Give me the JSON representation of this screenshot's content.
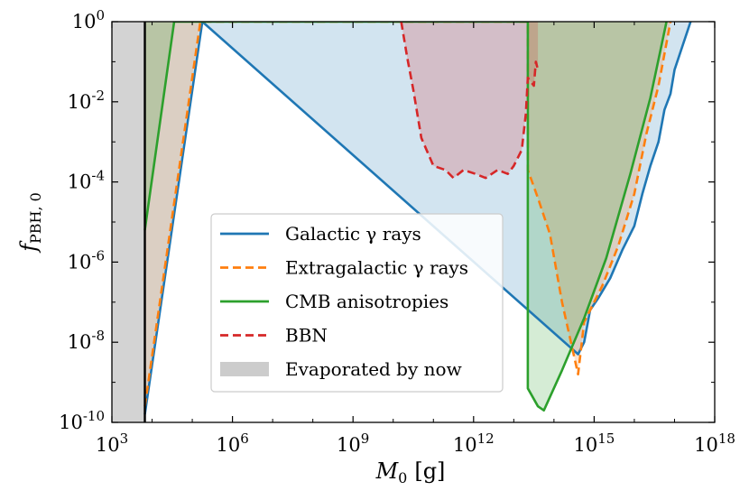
{
  "chart_data": {
    "type": "line",
    "xlabel": "M0 [g]",
    "xlabel_base": "M",
    "xlabel_sub": "0",
    "xlabel_unit": "[g]",
    "ylabel": "fPBH,0",
    "ylabel_base": "f",
    "ylabel_sub": "PBH, 0",
    "xscale": "log",
    "yscale": "log",
    "xlim_exp": [
      3,
      18
    ],
    "ylim_exp": [
      -10,
      0
    ],
    "xticks_exp": [
      3,
      6,
      9,
      12,
      15,
      18
    ],
    "yticks_exp": [
      0,
      -2,
      -4,
      -6,
      -8,
      -10
    ],
    "xtick_labels": [
      "10^3",
      "10^6",
      "10^9",
      "10^12",
      "10^15",
      "10^18"
    ],
    "ytick_labels": [
      "10^0",
      "10^-2",
      "10^-4",
      "10^-6",
      "10^-8",
      "10^-10"
    ],
    "legend_position": "center-left",
    "legend": [
      {
        "label": "Galactic γ rays",
        "color": "#1f77b4",
        "style": "solid",
        "kind": "line"
      },
      {
        "label": "Extragalactic γ rays",
        "color": "#ff7f0e",
        "style": "dashed",
        "kind": "line"
      },
      {
        "label": "CMB anisotropies",
        "color": "#2ca02c",
        "style": "solid",
        "kind": "line"
      },
      {
        "label": "BBN",
        "color": "#d62728",
        "style": "dashed",
        "kind": "line"
      },
      {
        "label": "Evaporated by now",
        "color": "#cccccc",
        "style": "patch",
        "kind": "patch"
      }
    ],
    "evaporated_region": {
      "log_m_max": 3.82,
      "color": "#d3d3d3"
    },
    "evaporation_line": {
      "log_m": 3.82,
      "color": "#000000"
    },
    "series": [
      {
        "name": "Galactic γ rays",
        "color": "#1f77b4",
        "style": "solid",
        "fill_color": "#1f77b4",
        "fill_opacity": 0.2,
        "log_x": [
          3.82,
          5.25,
          5.25,
          14.6,
          14.75,
          14.9,
          15.1,
          15.4,
          15.7,
          16.0,
          16.2,
          16.4,
          16.6,
          16.75,
          16.9,
          17.0,
          17.2,
          17.4
        ],
        "log_y": [
          -9.8,
          0.0,
          0.0,
          -8.3,
          -8.0,
          -7.2,
          -6.9,
          -6.4,
          -5.7,
          -5.1,
          -4.3,
          -3.6,
          -3.0,
          -2.2,
          -1.8,
          -1.2,
          -0.6,
          0.0
        ]
      },
      {
        "name": "Extragalactic γ rays",
        "color": "#ff7f0e",
        "style": "dashed",
        "fill_color": "#ff7f0e",
        "fill_opacity": 0.2,
        "log_x": [
          3.82,
          5.2,
          5.2,
          13.35,
          13.35,
          13.6,
          13.9,
          14.2,
          14.6,
          14.75,
          15.2,
          15.6,
          16.0,
          16.3,
          16.6,
          16.9
        ],
        "log_y": [
          -9.6,
          0.0,
          0.0,
          0.0,
          -3.7,
          -4.4,
          -5.3,
          -7.0,
          -8.8,
          -7.5,
          -6.6,
          -5.6,
          -4.3,
          -2.8,
          -1.6,
          0.0
        ]
      },
      {
        "name": "CMB anisotropies",
        "color": "#2ca02c",
        "style": "solid",
        "fill_color": "#2ca02c",
        "fill_opacity": 0.2,
        "log_x": [
          3.82,
          4.55,
          4.55,
          13.35,
          13.35,
          13.6,
          13.75,
          14.2,
          14.75,
          15.3,
          15.9,
          16.4,
          16.8
        ],
        "log_y": [
          -5.2,
          0.0,
          0.0,
          0.0,
          -9.15,
          -9.6,
          -9.7,
          -8.7,
          -7.4,
          -5.9,
          -3.8,
          -1.9,
          0.0
        ]
      },
      {
        "name": "BBN",
        "color": "#d62728",
        "style": "dashed",
        "fill_color": "#d62728",
        "fill_opacity": 0.2,
        "log_x": [
          10.2,
          10.35,
          10.5,
          10.7,
          11.0,
          11.3,
          11.5,
          11.75,
          12.05,
          12.3,
          12.6,
          12.85,
          13.0,
          13.2,
          13.3,
          13.35,
          13.5,
          13.55,
          13.6
        ],
        "log_y": [
          0.0,
          -0.9,
          -1.7,
          -2.9,
          -3.6,
          -3.7,
          -3.9,
          -3.7,
          -3.8,
          -3.9,
          -3.7,
          -3.8,
          -3.6,
          -3.2,
          -2.3,
          -1.4,
          -1.6,
          -1.0,
          -1.2
        ]
      }
    ]
  }
}
